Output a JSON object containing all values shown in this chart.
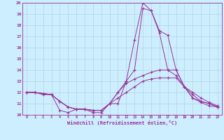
{
  "xlabel": "Windchill (Refroidissement éolien,°C)",
  "background_color": "#cceeff",
  "grid_color": "#b0ccd8",
  "line_color": "#993399",
  "xlim": [
    -0.5,
    23.5
  ],
  "ylim": [
    10,
    20
  ],
  "yticks": [
    10,
    11,
    12,
    13,
    14,
    15,
    16,
    17,
    18,
    19,
    20
  ],
  "xticks": [
    0,
    1,
    2,
    3,
    4,
    5,
    6,
    7,
    8,
    9,
    10,
    11,
    12,
    13,
    14,
    15,
    16,
    17,
    18,
    19,
    20,
    21,
    22,
    23
  ],
  "line1_x": [
    0,
    1,
    2,
    3,
    4,
    5,
    6,
    7,
    8,
    9,
    10,
    11,
    12,
    13,
    14,
    15,
    16,
    17,
    18,
    19,
    20,
    21,
    22,
    23
  ],
  "line1_y": [
    12.0,
    12.0,
    11.8,
    11.8,
    10.4,
    10.2,
    10.5,
    10.5,
    10.2,
    10.2,
    11.0,
    11.0,
    13.0,
    16.7,
    20.0,
    19.3,
    17.5,
    17.1,
    14.0,
    12.5,
    11.5,
    11.1,
    10.8,
    10.7
  ],
  "line2_x": [
    0,
    1,
    2,
    3,
    4,
    5,
    6,
    7,
    8,
    9,
    10,
    11,
    12,
    13,
    14,
    15,
    16,
    17,
    18,
    19,
    20,
    21,
    22,
    23
  ],
  "line2_y": [
    12.0,
    12.0,
    11.9,
    11.8,
    11.2,
    10.7,
    10.5,
    10.5,
    10.4,
    10.4,
    11.0,
    12.0,
    13.0,
    14.0,
    19.5,
    19.3,
    17.3,
    14.0,
    13.5,
    12.5,
    12.0,
    11.5,
    11.1,
    10.8
  ],
  "line3_x": [
    0,
    1,
    2,
    3,
    4,
    5,
    6,
    7,
    8,
    9,
    10,
    11,
    12,
    13,
    14,
    15,
    16,
    17,
    18,
    19,
    20,
    21,
    22,
    23
  ],
  "line3_y": [
    12.0,
    12.0,
    11.9,
    11.8,
    11.2,
    10.7,
    10.5,
    10.5,
    10.4,
    10.4,
    11.0,
    12.0,
    12.8,
    13.2,
    13.5,
    13.8,
    14.0,
    14.0,
    14.0,
    12.5,
    11.8,
    11.2,
    11.0,
    10.7
  ],
  "line4_x": [
    0,
    1,
    2,
    3,
    4,
    5,
    6,
    7,
    8,
    9,
    10,
    11,
    12,
    13,
    14,
    15,
    16,
    17,
    18,
    19,
    20,
    21,
    22,
    23
  ],
  "line4_y": [
    12.0,
    12.0,
    11.9,
    11.8,
    11.2,
    10.7,
    10.5,
    10.5,
    10.4,
    10.4,
    11.0,
    11.5,
    12.0,
    12.5,
    13.0,
    13.2,
    13.3,
    13.3,
    13.3,
    12.5,
    11.5,
    11.2,
    11.0,
    10.7
  ]
}
